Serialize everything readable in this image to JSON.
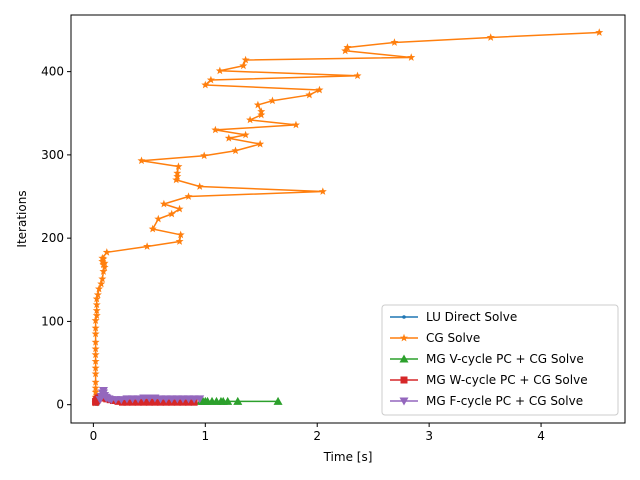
{
  "chart_data": {
    "type": "line",
    "title": "",
    "xlabel": "Time [s]",
    "ylabel": "Iterations",
    "xlim": [
      -0.2,
      4.75
    ],
    "ylim": [
      -22,
      468
    ],
    "xticks": [
      0,
      1,
      2,
      3,
      4
    ],
    "xtick_labels": [
      "0",
      "1",
      "2",
      "3",
      "4"
    ],
    "yticks": [
      0,
      100,
      200,
      300,
      400
    ],
    "ytick_labels": [
      "0",
      "100",
      "200",
      "300",
      "400"
    ],
    "grid": false,
    "legend_position": "lower right",
    "series": [
      {
        "name": "LU Direct Solve",
        "color": "#1f77b4",
        "marker": "circle-small",
        "x": [
          0.02,
          0.02,
          0.02,
          0.03,
          0.03,
          0.03,
          0.04,
          0.04
        ],
        "y": [
          1,
          1,
          1,
          1,
          1,
          1,
          1,
          1
        ]
      },
      {
        "name": "CG Solve",
        "color": "#ff7f0e",
        "marker": "star",
        "x": [
          0.02,
          0.02,
          0.02,
          0.02,
          0.02,
          0.02,
          0.02,
          0.02,
          0.02,
          0.02,
          0.02,
          0.02,
          0.02,
          0.02,
          0.03,
          0.03,
          0.03,
          0.03,
          0.04,
          0.05,
          0.07,
          0.08,
          0.09,
          0.1,
          0.1,
          0.09,
          0.09,
          0.08,
          0.08,
          0.12,
          0.48,
          0.77,
          0.78,
          0.53,
          0.58,
          0.7,
          0.77,
          0.63,
          0.85,
          2.05,
          0.95,
          0.74,
          0.75,
          0.75,
          0.76,
          0.43,
          0.99,
          1.27,
          1.49,
          1.21,
          1.36,
          1.09,
          1.81,
          1.4,
          1.5,
          1.5,
          1.47,
          1.6,
          1.93,
          2.02,
          1.0,
          1.05,
          2.36,
          1.13,
          1.34,
          1.36,
          2.84,
          2.25,
          2.27,
          2.69,
          3.55,
          4.52
        ],
        "y": [
          2,
          9,
          15,
          20,
          27,
          37,
          44,
          52,
          60,
          67,
          75,
          85,
          92,
          101,
          107,
          113,
          120,
          127,
          132,
          139,
          145,
          151,
          160,
          165,
          170,
          175,
          168,
          172,
          176,
          183,
          190,
          196,
          204,
          211,
          223,
          229,
          235,
          241,
          250,
          256,
          262,
          270,
          274,
          278,
          286,
          293,
          299,
          305,
          313,
          320,
          324,
          330,
          336,
          342,
          348,
          352,
          360,
          365,
          372,
          378,
          384,
          390,
          395,
          401,
          407,
          414,
          417,
          425,
          429,
          435,
          441,
          447
        ]
      },
      {
        "name": "MG V-cycle PC + CG Solve",
        "color": "#2ca02c",
        "marker": "triangle-up",
        "x": [
          0.96,
          0.98,
          1.0,
          1.02,
          1.06,
          1.1,
          1.14,
          1.16,
          1.2,
          1.29,
          1.65
        ],
        "y": [
          4,
          4,
          4,
          4,
          4,
          4,
          4,
          4,
          4,
          4,
          4
        ]
      },
      {
        "name": "MG W-cycle PC + CG Solve",
        "color": "#d62728",
        "marker": "square",
        "x": [
          0.02,
          0.02,
          0.03,
          0.03,
          0.04,
          0.04,
          0.06,
          0.08,
          0.1,
          0.12,
          0.15,
          0.18,
          0.22,
          0.26,
          0.3,
          0.35,
          0.4,
          0.45,
          0.5,
          0.55,
          0.6,
          0.65,
          0.7,
          0.75,
          0.8,
          0.85,
          0.9
        ],
        "y": [
          3,
          4,
          5,
          6,
          7,
          8,
          9,
          9,
          8,
          7,
          6,
          5,
          4,
          3,
          3,
          3,
          3,
          3,
          3,
          3,
          3,
          3,
          3,
          3,
          3,
          3,
          3
        ]
      },
      {
        "name": "MG F-cycle PC + CG Solve",
        "color": "#9467bd",
        "marker": "triangle-down",
        "x": [
          0.06,
          0.07,
          0.08,
          0.09,
          0.09,
          0.1,
          0.11,
          0.12,
          0.14,
          0.16,
          0.2,
          0.25,
          0.3,
          0.35,
          0.4,
          0.45,
          0.5,
          0.55,
          0.6,
          0.65,
          0.7,
          0.75,
          0.8,
          0.85,
          0.9,
          0.95
        ],
        "y": [
          6,
          10,
          14,
          17,
          14,
          11,
          9,
          8,
          7,
          6,
          6,
          6,
          7,
          7,
          7,
          8,
          8,
          8,
          7,
          7,
          7,
          7,
          7,
          7,
          7,
          7
        ]
      }
    ]
  }
}
